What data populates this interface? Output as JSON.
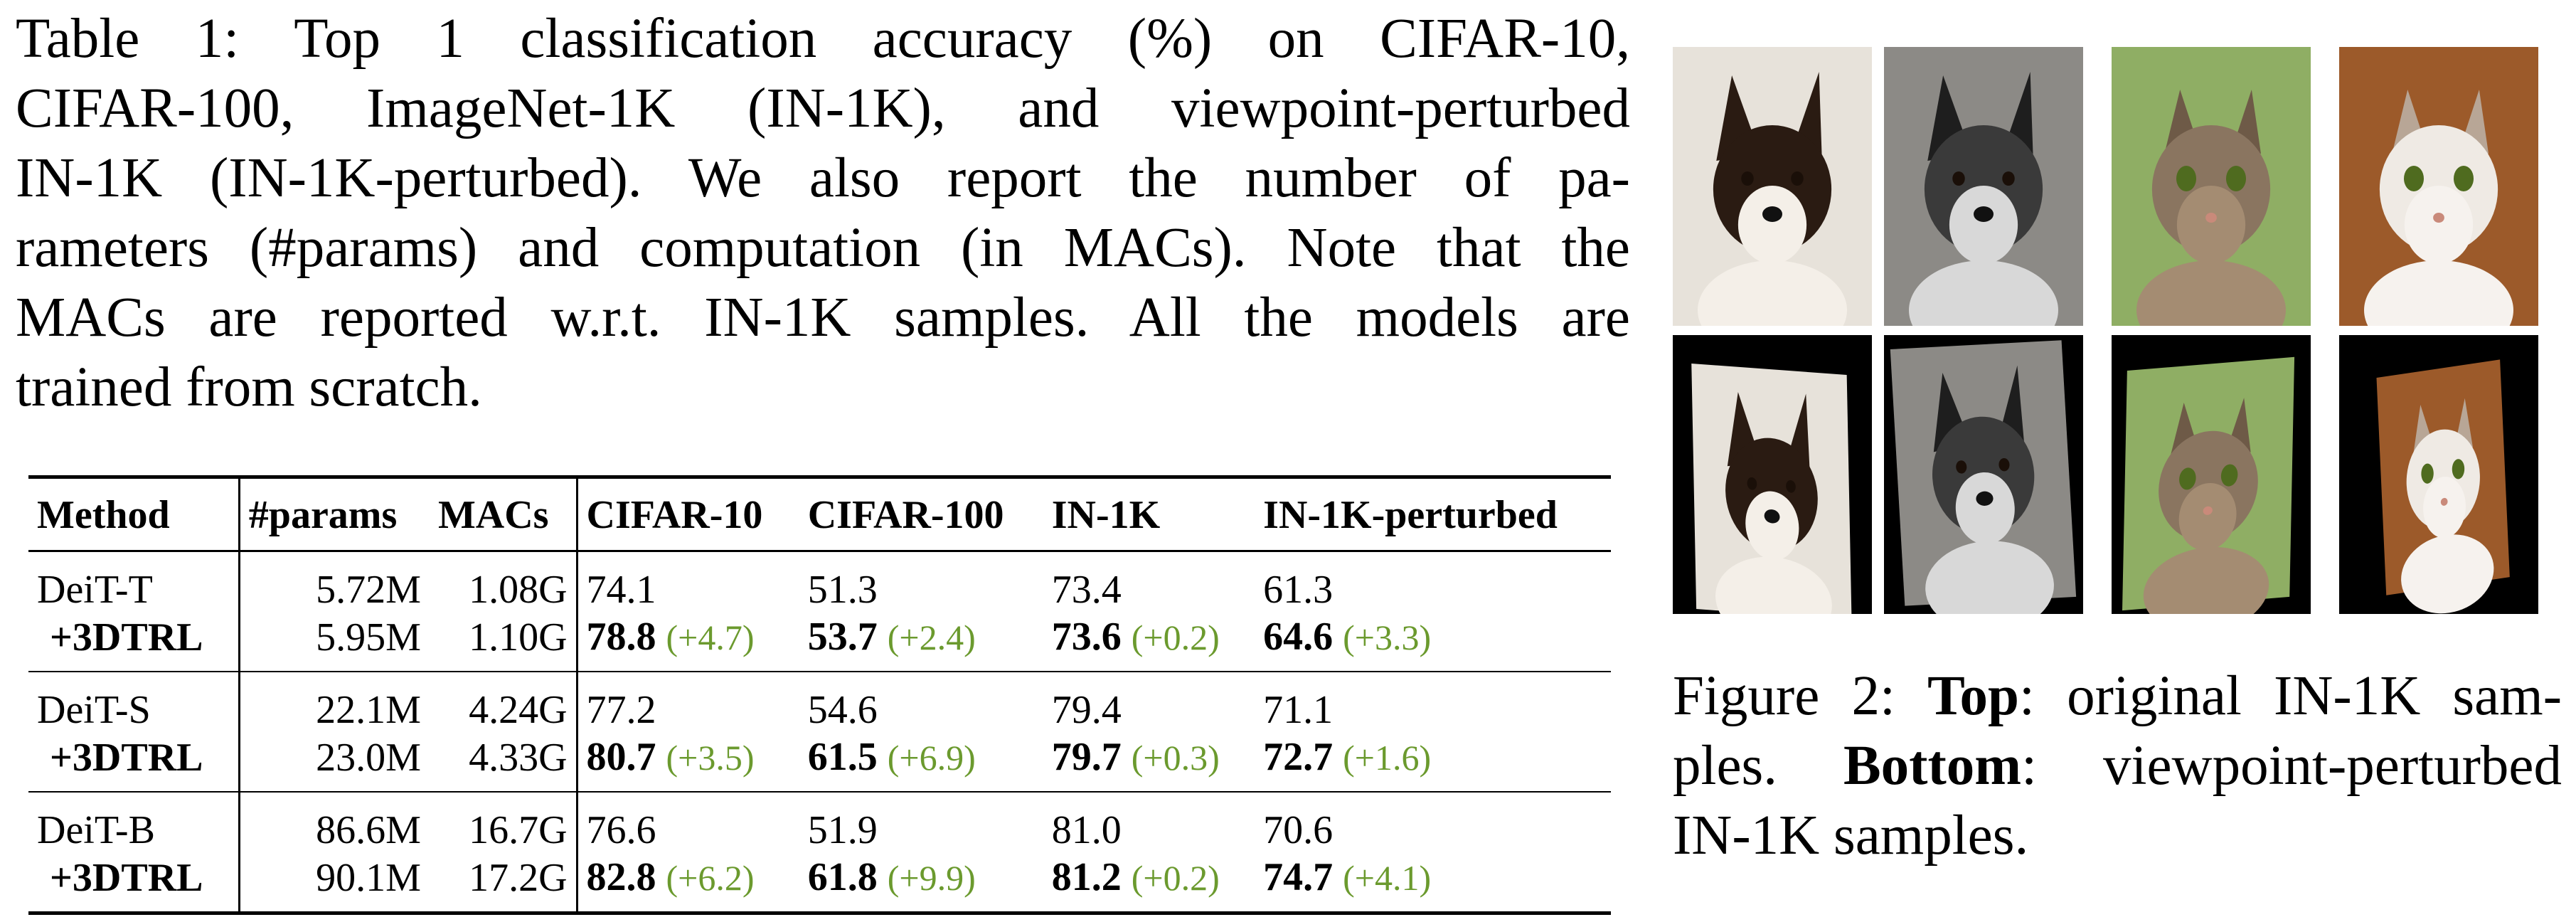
{
  "table_caption": {
    "lines": [
      "Table 1:  Top 1 classification accuracy (%) on CIFAR-10,",
      "CIFAR-100, ImageNet-1K (IN-1K), and viewpoint-perturbed",
      "IN-1K (IN-1K-perturbed).  We also report the number of pa-",
      "rameters (#params) and computation (in MACs). Note that the",
      "MACs are reported w.r.t. IN-1K samples.  All the models are",
      "trained from scratch."
    ]
  },
  "table": {
    "headers": [
      "Method",
      "#params",
      "MACs",
      "CIFAR-10",
      "CIFAR-100",
      "IN-1K",
      "IN-1K-perturbed"
    ],
    "groups": [
      {
        "base": {
          "method": "DeiT-T",
          "params": "5.72M",
          "macs": "1.08G",
          "cifar10": "74.1",
          "cifar100": "51.3",
          "in1k": "73.4",
          "in1k_perturbed": "61.3"
        },
        "variant": {
          "method": "+3DTRL",
          "params": "5.95M",
          "macs": "1.10G",
          "cifar10": "78.8",
          "cifar10_gain": "(+4.7)",
          "cifar100": "53.7",
          "cifar100_gain": "(+2.4)",
          "in1k": "73.6",
          "in1k_gain": "(+0.2)",
          "in1k_perturbed": "64.6",
          "in1k_perturbed_gain": "(+3.3)"
        }
      },
      {
        "base": {
          "method": "DeiT-S",
          "params": "22.1M",
          "macs": "4.24G",
          "cifar10": "77.2",
          "cifar100": "54.6",
          "in1k": "79.4",
          "in1k_perturbed": "71.1"
        },
        "variant": {
          "method": "+3DTRL",
          "params": "23.0M",
          "macs": "4.33G",
          "cifar10": "80.7",
          "cifar10_gain": "(+3.5)",
          "cifar100": "61.5",
          "cifar100_gain": "(+6.9)",
          "in1k": "79.7",
          "in1k_gain": "(+0.3)",
          "in1k_perturbed": "72.7",
          "in1k_perturbed_gain": "(+1.6)"
        }
      },
      {
        "base": {
          "method": "DeiT-B",
          "params": "86.6M",
          "macs": "16.7G",
          "cifar10": "76.6",
          "cifar100": "51.9",
          "in1k": "81.0",
          "in1k_perturbed": "70.6"
        },
        "variant": {
          "method": "+3DTRL",
          "params": "90.1M",
          "macs": "17.2G",
          "cifar10": "82.8",
          "cifar10_gain": "(+6.2)",
          "cifar100": "61.8",
          "cifar100_gain": "(+9.9)",
          "in1k": "81.2",
          "in1k_gain": "(+0.2)",
          "in1k_perturbed": "74.7",
          "in1k_perturbed_gain": "(+4.1)"
        }
      }
    ],
    "gain_color": "#6b9a2e"
  },
  "figure": {
    "top_row": [
      {
        "subject": "dog-corgi",
        "bg": "#e7e2da"
      },
      {
        "subject": "dog-speckled",
        "bg": "#8c8a86"
      },
      {
        "subject": "cat-tabby",
        "bg": "#8fae64"
      },
      {
        "subject": "cat-white",
        "bg": "#9c5a2a"
      }
    ],
    "bottom_row_label": "viewpoint-perturbed",
    "caption": {
      "figure_label": "Figure 2:",
      "top_label": "Top",
      "top_text": ": original IN-1K sam-",
      "line2_a": "ples.",
      "bottom_label": "Bottom",
      "bottom_text": ": viewpoint-perturbed",
      "line3": "IN-1K samples."
    }
  }
}
